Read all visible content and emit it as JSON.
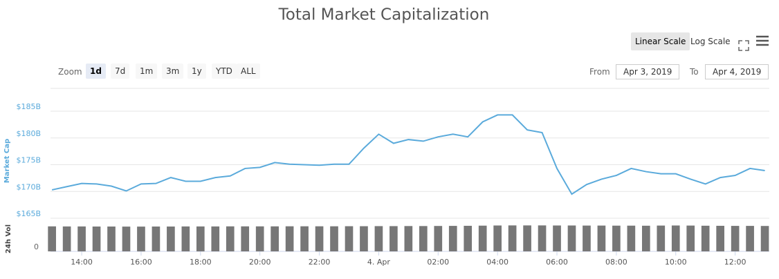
{
  "title": "Total Market Capitalization",
  "controls": {
    "scale_buttons": [
      "Linear Scale",
      "Log Scale"
    ],
    "active_scale": 0,
    "zoom_label": "Zoom",
    "zoom_buttons": [
      "1d",
      "7d",
      "1m",
      "3m",
      "1y",
      "YTD",
      "ALL"
    ],
    "active_zoom": 0,
    "from_label": "From",
    "from": "Apr 3, 2019",
    "to_label": "To",
    "to": "Apr 4, 2019"
  },
  "chart_data": {
    "type": "line",
    "ylabel": "Market Cap",
    "y2label": "24h Vol",
    "x": [
      13,
      13.5,
      14,
      14.5,
      15,
      15.5,
      16,
      16.5,
      17,
      17.5,
      18,
      18.5,
      19,
      19.5,
      20,
      20.5,
      21,
      21.5,
      22,
      22.5,
      23,
      23.5,
      24,
      24.5,
      25,
      25.5,
      26,
      26.5,
      27,
      27.5,
      28,
      28.5,
      29,
      29.5,
      30,
      30.5,
      31,
      31.5,
      32,
      32.5,
      33,
      33.5,
      34,
      34.5,
      35,
      35.5,
      36,
      36.5,
      37
    ],
    "xlim": [
      12.95,
      37.15
    ],
    "xticks": [
      {
        "value": 14,
        "label": "14:00"
      },
      {
        "value": 16,
        "label": "16:00"
      },
      {
        "value": 18,
        "label": "18:00"
      },
      {
        "value": 20,
        "label": "20:00"
      },
      {
        "value": 22,
        "label": "22:00"
      },
      {
        "value": 24,
        "label": "4. Apr"
      },
      {
        "value": 26,
        "label": "02:00"
      },
      {
        "value": 28,
        "label": "04:00"
      },
      {
        "value": 30,
        "label": "06:00"
      },
      {
        "value": 32,
        "label": "08:00"
      },
      {
        "value": 34,
        "label": "10:00"
      },
      {
        "value": 36,
        "label": "12:00"
      }
    ],
    "ylim": [
      165,
      189
    ],
    "yticks": [
      {
        "value": 165,
        "label": "$165B"
      },
      {
        "value": 170,
        "label": "$170B"
      },
      {
        "value": 175,
        "label": "$175B"
      },
      {
        "value": 180,
        "label": "$180B"
      },
      {
        "value": 185,
        "label": "$185B"
      }
    ],
    "y2lim": [
      0,
      40
    ],
    "y2ticks": [
      0
    ],
    "grid": true,
    "series": [
      {
        "color": "#5aaadb",
        "values": [
          170.3,
          170.9,
          171.5,
          171.4,
          171.0,
          170.1,
          171.4,
          171.5,
          172.6,
          171.9,
          171.9,
          172.6,
          172.9,
          174.3,
          174.5,
          175.4,
          175.1,
          175.0,
          174.9,
          175.1,
          175.1,
          178.1,
          180.7,
          179.0,
          179.7,
          179.4,
          180.2,
          180.7,
          180.2,
          183.0,
          184.3,
          184.3,
          181.5,
          181.0,
          174.3,
          169.5,
          171.3,
          172.3,
          173.0,
          174.3,
          173.7,
          173.3,
          173.3,
          172.3,
          171.4,
          172.6,
          173.0,
          174.3,
          173.9
        ]
      },
      {
        "color": "#777777",
        "axis": "y2",
        "values": [
          31.5,
          31.4,
          31.4,
          31.3,
          31.3,
          31.2,
          31.2,
          31.3,
          31.3,
          31.4,
          31.4,
          31.4,
          31.5,
          31.5,
          31.5,
          31.5,
          31.6,
          31.6,
          31.6,
          31.6,
          31.7,
          31.7,
          31.8,
          31.8,
          31.9,
          31.9,
          32.0,
          32.1,
          32.2,
          32.4,
          32.6,
          32.7,
          32.7,
          32.7,
          32.6,
          32.6,
          32.5,
          32.5,
          32.4,
          32.4,
          32.3,
          32.5,
          32.6,
          32.5,
          32.3,
          32.2,
          32.1,
          32.1,
          32.0
        ]
      }
    ]
  }
}
